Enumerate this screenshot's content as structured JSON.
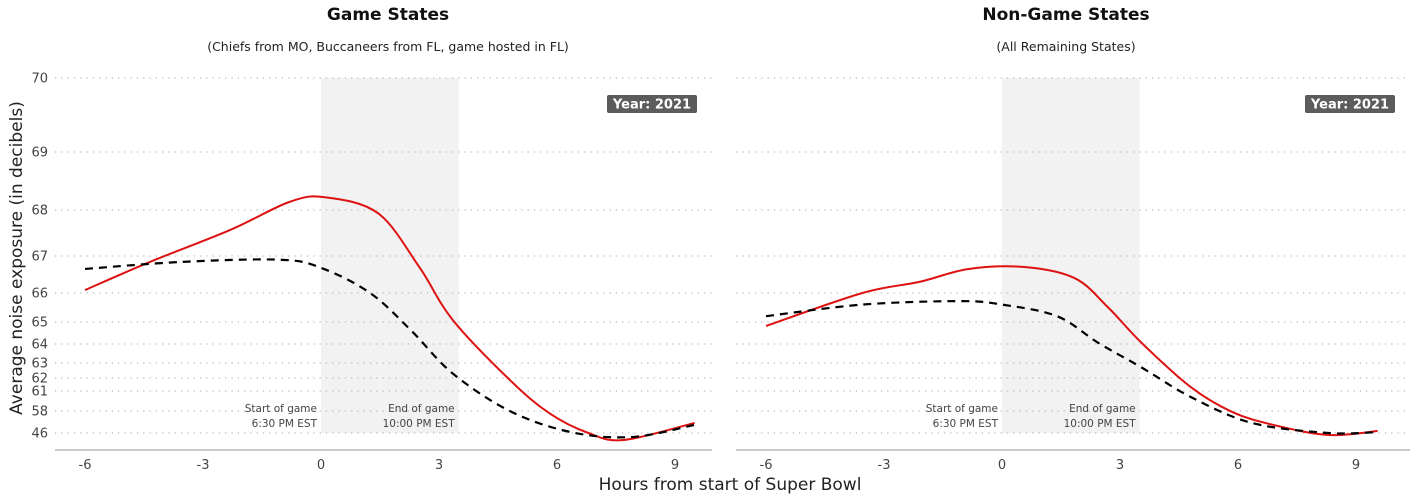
{
  "chart_data": [
    {
      "type": "line",
      "title": "Game States",
      "subtitle": "(Chiefs from MO, Buccaneers from FL, game hosted in FL)",
      "badge": "Year: 2021",
      "xlabel": "Hours from start of Super Bowl",
      "ylabel": "Average noise exposure (in decibels)",
      "xticks": [
        "-6",
        "-3",
        "0",
        "3",
        "6",
        "9"
      ],
      "yticks": [
        "70",
        "69",
        "68",
        "67",
        "66",
        "65",
        "64",
        "63",
        "62",
        "61",
        "58",
        "46"
      ],
      "ylim": [
        46,
        70
      ],
      "xlim": [
        -6,
        9.5
      ],
      "grid": "horizontal dotted",
      "shaded_region": [
        0,
        3.5
      ],
      "annotations": [
        {
          "x": 0,
          "lines": [
            "Start of game",
            "6:30 PM EST"
          ],
          "align": "right"
        },
        {
          "x": 3.5,
          "lines": [
            "End of game",
            "10:00 PM EST"
          ],
          "align": "right"
        }
      ],
      "series": [
        {
          "style": "solid",
          "color": "#dd1111",
          "x": [
            -6,
            -4.35,
            -2.3,
            -0.8,
            0.1,
            1.45,
            2.5,
            3.35,
            4.8,
            5.8,
            6.8,
            7.7,
            9.5
          ],
          "y": [
            66.08,
            66.84,
            67.57,
            68.14,
            68.22,
            67.93,
            66.7,
            65.07,
            61.85,
            56.9,
            46,
            42.2,
            51.5
          ]
        },
        {
          "style": "dashed",
          "color": "#000000",
          "x": [
            -6,
            -3.55,
            -1.05,
            0,
            1.25,
            2.3,
            3.35,
            4.8,
            6.35,
            7.9,
            9.5
          ],
          "y": [
            66.65,
            66.84,
            66.9,
            66.68,
            66.0,
            64.6,
            62.3,
            58,
            46.5,
            43.8,
            50.4
          ]
        }
      ]
    },
    {
      "type": "line",
      "title": "Non-Game States",
      "subtitle": "(All Remaining States)",
      "badge": "Year: 2021",
      "xticks": [
        "-6",
        "-3",
        "0",
        "3",
        "6",
        "9"
      ],
      "ylim": [
        46,
        70
      ],
      "xlim": [
        -6,
        9.5
      ],
      "grid": "horizontal dotted",
      "shaded_region": [
        0,
        3.5
      ],
      "annotations": [
        {
          "x": 0,
          "lines": [
            "Start of game",
            "6:30 PM EST"
          ],
          "align": "right"
        },
        {
          "x": 3.5,
          "lines": [
            "End of game",
            "10:00 PM EST"
          ],
          "align": "right"
        }
      ],
      "series": [
        {
          "style": "solid",
          "color": "#dd1111",
          "x": [
            -6,
            -3.55,
            -2.1,
            -0.85,
            0.6,
            1.85,
            2.7,
            3.55,
            4.8,
            5.85,
            6.9,
            8.3,
            9.55
          ],
          "y": [
            64.82,
            66.0,
            66.3,
            66.65,
            66.7,
            66.4,
            65.5,
            64.05,
            61.3,
            57.5,
            50.4,
            44.9,
            47.1
          ]
        },
        {
          "style": "dashed",
          "color": "#000000",
          "x": [
            -6,
            -3.55,
            -1.07,
            0,
            1.4,
            2.45,
            3.55,
            4.8,
            6.35,
            8.3,
            9.55
          ],
          "y": [
            65.2,
            65.6,
            65.72,
            65.6,
            65.2,
            64.05,
            62.7,
            60.1,
            51.5,
            46,
            46.5
          ]
        }
      ]
    }
  ]
}
